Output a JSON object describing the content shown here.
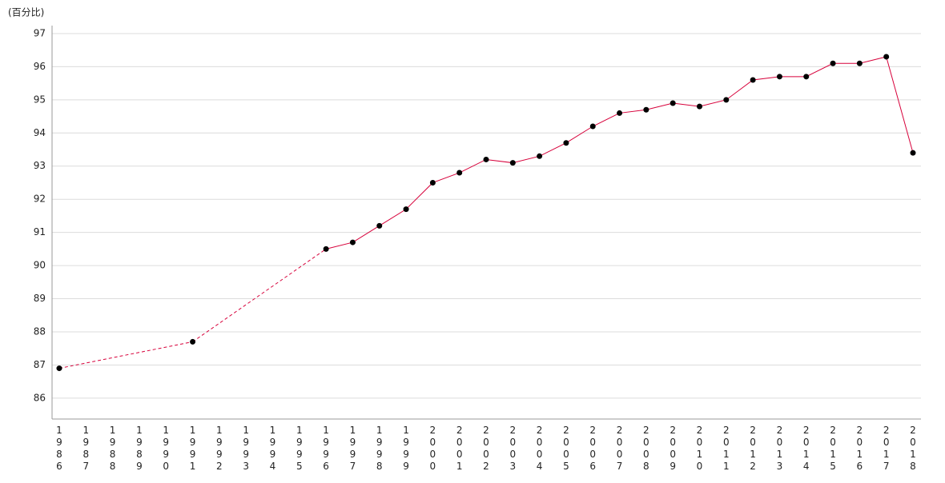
{
  "chart_data": {
    "type": "line",
    "y_axis_label": "(百分比)",
    "categories": [
      "1986",
      "1987",
      "1988",
      "1989",
      "1990",
      "1991",
      "1992",
      "1993",
      "1994",
      "1995",
      "1996",
      "1997",
      "1998",
      "1999",
      "2000",
      "2001",
      "2002",
      "2003",
      "2004",
      "2005",
      "2006",
      "2007",
      "2008",
      "2009",
      "2010",
      "2011",
      "2012",
      "2013",
      "2014",
      "2015",
      "2016",
      "2017",
      "2018"
    ],
    "series": [
      {
        "color": "#d7003a",
        "marker_color": "#000000",
        "values": [
          86.9,
          null,
          null,
          null,
          null,
          87.7,
          null,
          null,
          null,
          null,
          90.5,
          90.7,
          91.2,
          91.7,
          92.5,
          92.8,
          93.2,
          93.1,
          93.3,
          93.7,
          94.2,
          94.6,
          94.7,
          94.9,
          94.8,
          95.0,
          95.6,
          95.7,
          95.7,
          96.1,
          96.1,
          96.3,
          93.4
        ]
      }
    ],
    "ylim": [
      85.37,
      97.24
    ],
    "yticks": [
      86,
      87,
      88,
      89,
      90,
      91,
      92,
      93,
      94,
      95,
      96,
      97
    ],
    "grid": true,
    "gap_style": "dashed"
  }
}
